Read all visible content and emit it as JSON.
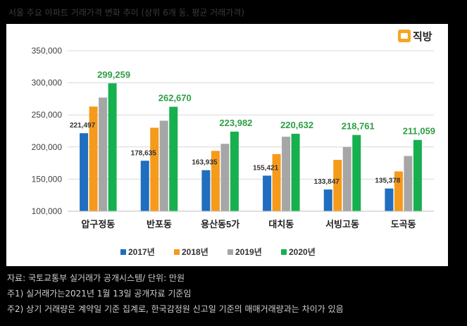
{
  "header": {
    "title": "서울 주요 아파트 거래가격 변화 추이 (상위 6개 동, 평균 거래가격)"
  },
  "logo": {
    "text": "직방"
  },
  "chart_data": {
    "type": "bar",
    "title": "",
    "xlabel": "",
    "ylabel": "",
    "ylim": [
      100000,
      350000
    ],
    "yticks": [
      100000,
      150000,
      200000,
      250000,
      300000,
      350000
    ],
    "ytick_labels": [
      "100,000",
      "150,000",
      "200,000",
      "250,000",
      "300,000",
      "350,000"
    ],
    "categories": [
      "압구정동",
      "반포동",
      "용산동5가",
      "대치동",
      "서빙고동",
      "도곡동"
    ],
    "series": [
      {
        "name": "2017년",
        "color": "#1f6ebf",
        "values": [
          221497,
          178635,
          163935,
          155421,
          133847,
          135378
        ]
      },
      {
        "name": "2018년",
        "color": "#f59a1b",
        "values": [
          263000,
          230000,
          194000,
          189000,
          180000,
          162000
        ]
      },
      {
        "name": "2019년",
        "color": "#a6a6a6",
        "values": [
          277000,
          241000,
          205000,
          216000,
          200000,
          186000
        ]
      },
      {
        "name": "2020년",
        "color": "#17b04f",
        "values": [
          299259,
          262670,
          223982,
          220632,
          218761,
          211059
        ]
      }
    ],
    "data_labels": {
      "2017년": [
        "221,497",
        "178,635",
        "163,935",
        "155,421",
        "133,847",
        "135,378"
      ],
      "2020년": [
        "299,259",
        "262,670",
        "223,982",
        "220,632",
        "218,761",
        "211,059"
      ]
    },
    "legend": "bottom",
    "grid": true
  },
  "notes": [
    "자료: 국토교통부 실거래가 공개시스템/ 단위: 만원",
    "주1) 실거래가는2021년 1월 13일   공개자료 기준임",
    "주2) 상기 거래량은 계약일 기준 집계로, 한국감정원 신고일 기준의 매매거래량과는 차이가 있음"
  ]
}
